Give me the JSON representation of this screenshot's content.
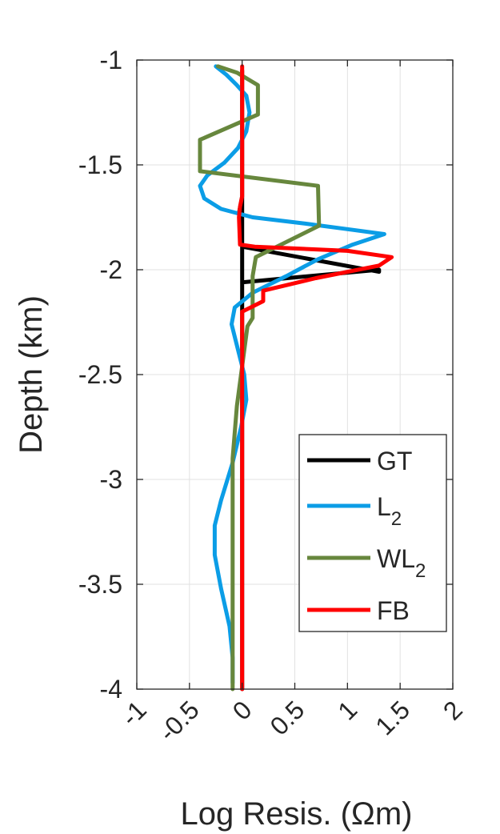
{
  "chart_data": {
    "type": "line",
    "title": "",
    "xlabel": "Log Resis. (Ωm)",
    "ylabel": "Depth (km)",
    "xlim": [
      -1,
      2
    ],
    "ylim": [
      -4,
      -1
    ],
    "xticks": [
      -1,
      -0.5,
      0,
      0.5,
      1,
      1.5,
      2
    ],
    "xtick_labels": [
      "-1",
      "-0.5",
      "0",
      "0.5",
      "1",
      "1.5",
      "2"
    ],
    "yticks": [
      -1,
      -1.5,
      -2,
      -2.5,
      -3,
      -3.5,
      -4
    ],
    "ytick_labels": [
      "-1",
      "-1.5",
      "-2",
      "-2.5",
      "-3",
      "-3.5",
      "-4"
    ],
    "grid": true,
    "legend_position": "bottom-right",
    "series": [
      {
        "name": "GT",
        "name_sub": "",
        "color": "#000000",
        "points": [
          [
            0,
            -1.05
          ],
          [
            0,
            -2.06
          ],
          [
            1.3,
            -2.0
          ],
          [
            1.3,
            -2.01
          ],
          [
            0,
            -1.89
          ],
          [
            0,
            -1.75
          ],
          [
            -0.03,
            -1.73
          ],
          [
            0,
            -1.65
          ],
          [
            0,
            -2.08
          ],
          [
            0,
            -4.0
          ]
        ]
      },
      {
        "name": "L",
        "name_sub": "2",
        "color": "#0b9de6",
        "points": [
          [
            -0.25,
            -1.03
          ],
          [
            -0.15,
            -1.07
          ],
          [
            -0.05,
            -1.12
          ],
          [
            0.04,
            -1.17
          ],
          [
            0.07,
            -1.25
          ],
          [
            0.04,
            -1.34
          ],
          [
            -0.04,
            -1.42
          ],
          [
            -0.17,
            -1.49
          ],
          [
            -0.33,
            -1.55
          ],
          [
            -0.4,
            -1.6
          ],
          [
            -0.36,
            -1.66
          ],
          [
            -0.2,
            -1.71
          ],
          [
            0.1,
            -1.75
          ],
          [
            0.6,
            -1.78
          ],
          [
            1.05,
            -1.81
          ],
          [
            1.35,
            -1.83
          ],
          [
            1.05,
            -1.88
          ],
          [
            0.72,
            -1.95
          ],
          [
            0.42,
            -2.03
          ],
          [
            0.1,
            -2.11
          ],
          [
            -0.07,
            -2.18
          ],
          [
            -0.1,
            -2.26
          ],
          [
            -0.04,
            -2.38
          ],
          [
            0.02,
            -2.5
          ],
          [
            0.04,
            -2.62
          ],
          [
            -0.01,
            -2.75
          ],
          [
            -0.09,
            -2.92
          ],
          [
            -0.2,
            -3.1
          ],
          [
            -0.26,
            -3.22
          ],
          [
            -0.26,
            -3.36
          ],
          [
            -0.2,
            -3.52
          ],
          [
            -0.12,
            -3.7
          ],
          [
            -0.09,
            -3.85
          ],
          [
            -0.09,
            -3.97
          ]
        ]
      },
      {
        "name": "WL",
        "name_sub": "2",
        "color": "#67873d",
        "points": [
          [
            -0.23,
            -1.03
          ],
          [
            -0.05,
            -1.06
          ],
          [
            0.15,
            -1.12
          ],
          [
            0.15,
            -1.26
          ],
          [
            -0.4,
            -1.38
          ],
          [
            -0.4,
            -1.53
          ],
          [
            0.72,
            -1.6
          ],
          [
            0.73,
            -1.79
          ],
          [
            0.13,
            -1.94
          ],
          [
            0.1,
            -2.03
          ],
          [
            0.1,
            -2.23
          ],
          [
            0.05,
            -2.27
          ],
          [
            -0.05,
            -2.65
          ],
          [
            -0.09,
            -2.9
          ],
          [
            -0.09,
            -4.0
          ]
        ]
      },
      {
        "name": "FB",
        "name_sub": "",
        "color": "#ff0000",
        "points": [
          [
            0,
            -1.03
          ],
          [
            0,
            -1.65
          ],
          [
            -0.02,
            -1.7
          ],
          [
            -0.03,
            -1.75
          ],
          [
            -0.02,
            -1.88
          ],
          [
            0.12,
            -1.89
          ],
          [
            1.0,
            -1.91
          ],
          [
            1.42,
            -1.94
          ],
          [
            1.3,
            -1.98
          ],
          [
            0.7,
            -2.04
          ],
          [
            0.2,
            -2.1
          ],
          [
            0.2,
            -2.15
          ],
          [
            0,
            -2.2
          ],
          [
            0,
            -4.0
          ]
        ]
      }
    ]
  }
}
